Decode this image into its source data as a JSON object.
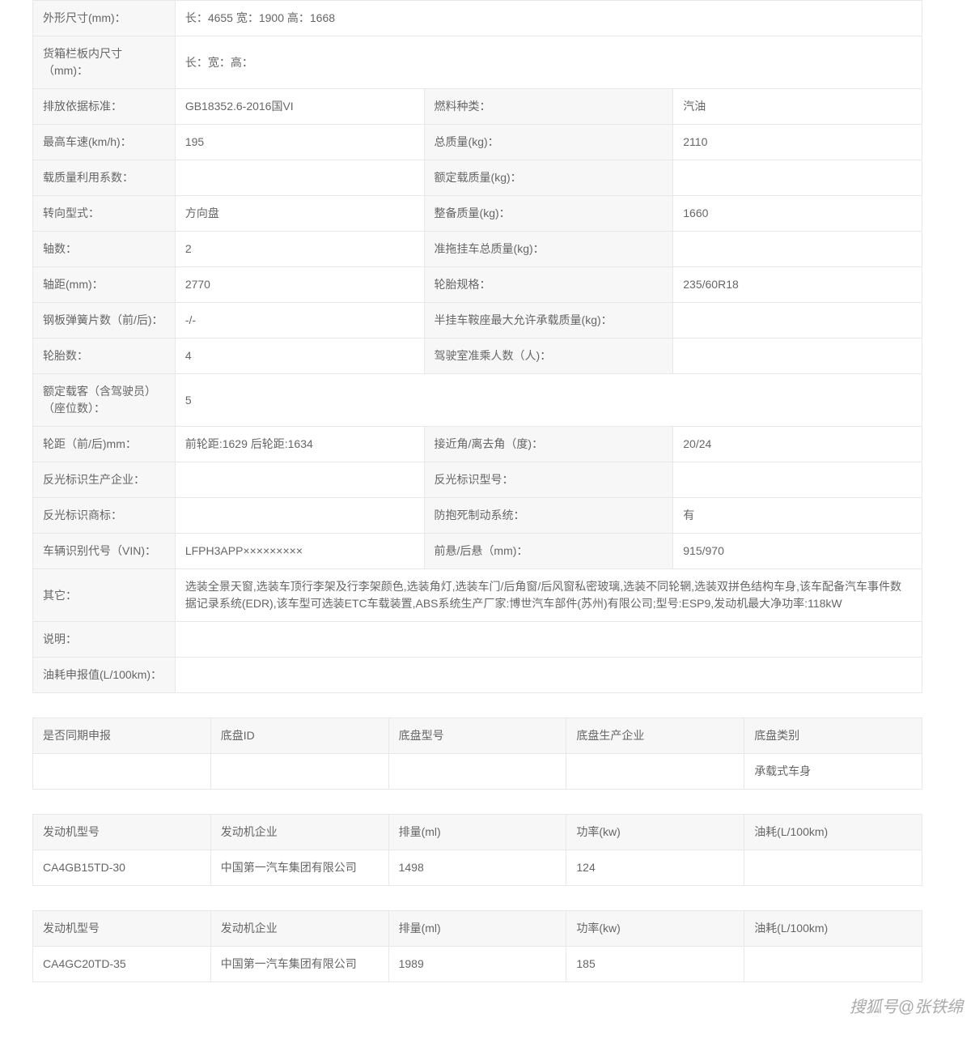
{
  "main": {
    "rows": [
      {
        "type": "full",
        "label": "外形尺寸(mm)：",
        "value": "长：4655 宽：1900 高：1668"
      },
      {
        "type": "full",
        "label": "货箱栏板内尺寸（mm)：",
        "value": "长：宽：高："
      },
      {
        "type": "pair",
        "label": "排放依据标准：",
        "value": "GB18352.6-2016国VI",
        "label2": "燃料种类：",
        "value2": "汽油"
      },
      {
        "type": "pair",
        "label": "最高车速(km/h)：",
        "value": "195",
        "label2": "总质量(kg)：",
        "value2": "2110"
      },
      {
        "type": "pair",
        "label": "载质量利用系数：",
        "value": "",
        "label2": "额定载质量(kg)：",
        "value2": ""
      },
      {
        "type": "pair",
        "label": "转向型式：",
        "value": "方向盘",
        "label2": "整备质量(kg)：",
        "value2": "1660"
      },
      {
        "type": "pair",
        "label": "轴数：",
        "value": "2",
        "label2": "准拖挂车总质量(kg)：",
        "value2": ""
      },
      {
        "type": "pair",
        "label": "轴距(mm)：",
        "value": "2770",
        "label2": "轮胎规格：",
        "value2": "235/60R18"
      },
      {
        "type": "pair",
        "label": "钢板弹簧片数（前/后)：",
        "value": "-/-",
        "label2": "半挂车鞍座最大允许承载质量(kg)：",
        "value2": ""
      },
      {
        "type": "pair",
        "label": "轮胎数：",
        "value": "4",
        "label2": "驾驶室准乘人数（人)：",
        "value2": ""
      },
      {
        "type": "full",
        "label": "额定载客（含驾驶员）（座位数）：",
        "value": "5"
      },
      {
        "type": "pair",
        "label": "轮距（前/后)mm：",
        "value": "前轮距:1629 后轮距:1634",
        "label2": "接近角/离去角（度)：",
        "value2": "20/24"
      },
      {
        "type": "pair",
        "label": "反光标识生产企业：",
        "value": "",
        "label2": "反光标识型号：",
        "value2": ""
      },
      {
        "type": "pair",
        "label": "反光标识商标：",
        "value": "",
        "label2": "防抱死制动系统：",
        "value2": "有"
      },
      {
        "type": "pair",
        "label": "车辆识别代号（VIN)：",
        "value": "LFPH3APP×××××××××",
        "label2": "前悬/后悬（mm)：",
        "value2": "915/970"
      },
      {
        "type": "full",
        "label": "其它：",
        "value": "选装全景天窗,选装车顶行李架及行李架颜色,选装角灯,选装车门/后角窗/后风窗私密玻璃,选装不同轮辋,选装双拼色结构车身,该车配备汽车事件数据记录系统(EDR),该车型可选装ETC车载装置,ABS系统生产厂家:博世汽车部件(苏州)有限公司;型号:ESP9,发动机最大净功率:118kW"
      },
      {
        "type": "full",
        "label": "说明：",
        "value": ""
      },
      {
        "type": "full",
        "label": "油耗申报值(L/100km)：",
        "value": ""
      }
    ]
  },
  "chassis": {
    "headers": [
      "是否同期申报",
      "底盘ID",
      "底盘型号",
      "底盘生产企业",
      "底盘类别"
    ],
    "row": [
      "",
      "",
      "",
      "",
      "承载式车身"
    ]
  },
  "engine1": {
    "headers": [
      "发动机型号",
      "发动机企业",
      "排量(ml)",
      "功率(kw)",
      "油耗(L/100km)"
    ],
    "row": [
      "CA4GB15TD-30",
      "中国第一汽车集团有限公司",
      "1498",
      "124",
      ""
    ]
  },
  "engine2": {
    "headers": [
      "发动机型号",
      "发动机企业",
      "排量(ml)",
      "功率(kw)",
      "油耗(L/100km)"
    ],
    "row": [
      "CA4GC20TD-35",
      "中国第一汽车集团有限公司",
      "1989",
      "185",
      ""
    ]
  },
  "watermark": "搜狐号@张铁绵"
}
